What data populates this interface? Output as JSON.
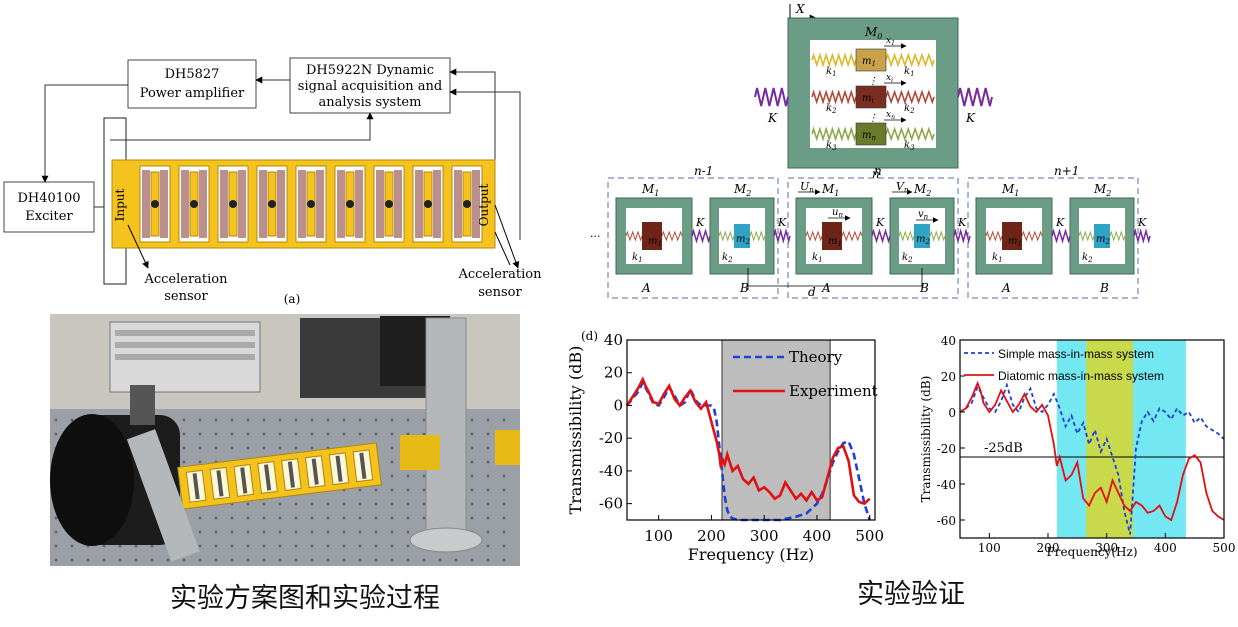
{
  "schematic": {
    "amplifier": [
      "DH5827",
      "Power amplifier"
    ],
    "daq": [
      "DH5922N Dynamic",
      "signal acquisition and",
      "analysis system"
    ],
    "exciter": [
      "DH40100",
      "Exciter"
    ],
    "input": "Input",
    "output": "Output",
    "accel_left": [
      "Acceleration",
      "sensor"
    ],
    "accel_right": [
      "Acceleration",
      "sensor"
    ],
    "panel_tag": "(a)"
  },
  "model": {
    "x_label": "X",
    "M0": "M",
    "M0_sub": "0",
    "K": "K",
    "n_label": "n",
    "rows": [
      {
        "mass": "m",
        "sub": "1",
        "k": "k",
        "k_sub": "1",
        "disp": "x",
        "disp_sub": "1"
      },
      {
        "mass": "m",
        "sub": "i",
        "k": "k",
        "k_sub": "2",
        "disp": "x",
        "disp_sub": "i"
      },
      {
        "mass": "m",
        "sub": "n",
        "k": "k",
        "k_sub": "3",
        "disp": "x",
        "disp_sub": "n"
      }
    ],
    "chain_cells": [
      "n-1",
      "n",
      "n+1"
    ],
    "M1": "M",
    "M2": "M",
    "m1": "m",
    "m2": "m",
    "k1": "k",
    "k2": "k",
    "A": "A",
    "B": "B",
    "d": "d",
    "U": "U",
    "V": "V",
    "u": "u",
    "v": "v",
    "sub_n": "n",
    "sub_1": "1",
    "sub_2": "2",
    "ellipsis": "···"
  },
  "photo": {
    "colors": {
      "yellow": "#f4c21a",
      "bench": "#8b8f94",
      "dark": "#222"
    }
  },
  "chart_data": [
    {
      "type": "line",
      "panel_tag": "(d)",
      "xlabel": "Frequency (Hz)",
      "ylabel": "Transmissibility (dB)",
      "xlim": [
        40,
        510
      ],
      "ylim": [
        -70,
        40
      ],
      "xticks": [
        100,
        200,
        300,
        400,
        500
      ],
      "yticks": [
        40,
        20,
        0,
        -20,
        -40,
        -60
      ],
      "band": [
        220,
        425
      ],
      "series": [
        {
          "name": "Theory",
          "style": "dashed",
          "color": "#1f3fd6",
          "x": [
            40,
            60,
            70,
            80,
            90,
            100,
            110,
            120,
            130,
            140,
            150,
            160,
            170,
            180,
            190,
            200,
            205,
            210,
            215,
            220,
            225,
            230,
            235,
            240,
            250,
            270,
            300,
            330,
            360,
            380,
            400,
            410,
            420,
            430,
            440,
            450,
            460,
            470,
            480,
            490,
            500
          ],
          "y": [
            0,
            8,
            14,
            8,
            1,
            0,
            5,
            11,
            6,
            0,
            2,
            10,
            3,
            0,
            0,
            0,
            -2,
            -10,
            -25,
            -40,
            -55,
            -64,
            -68,
            -69,
            -70,
            -70,
            -70,
            -70,
            -68,
            -66,
            -60,
            -54,
            -45,
            -35,
            -28,
            -23,
            -22,
            -30,
            -45,
            -60,
            -70
          ]
        },
        {
          "name": "Experiment",
          "style": "solid",
          "color": "#e21010",
          "x": [
            40,
            60,
            70,
            75,
            80,
            90,
            100,
            110,
            120,
            130,
            140,
            150,
            160,
            170,
            180,
            190,
            200,
            210,
            215,
            218,
            220,
            225,
            230,
            240,
            250,
            260,
            270,
            280,
            290,
            300,
            310,
            320,
            330,
            340,
            350,
            360,
            370,
            380,
            390,
            400,
            410,
            420,
            430,
            440,
            450,
            460,
            470,
            480,
            490,
            500
          ],
          "y": [
            0,
            10,
            16,
            12,
            9,
            2,
            1,
            7,
            12,
            4,
            0,
            5,
            9,
            2,
            -2,
            2,
            -10,
            -22,
            -30,
            -38,
            -32,
            -36,
            -30,
            -40,
            -37,
            -45,
            -48,
            -44,
            -52,
            -50,
            -53,
            -57,
            -55,
            -47,
            -52,
            -57,
            -54,
            -58,
            -53,
            -58,
            -56,
            -44,
            -32,
            -26,
            -25,
            -34,
            -55,
            -59,
            -60,
            -57
          ]
        }
      ]
    },
    {
      "type": "line",
      "xlabel": "Frequency(Hz)",
      "ylabel": "Transmissibility (dB)",
      "xlim": [
        50,
        500
      ],
      "ylim": [
        -70,
        40
      ],
      "xticks": [
        100,
        200,
        300,
        400,
        500
      ],
      "yticks": [
        40,
        20,
        0,
        -20,
        -40,
        -60
      ],
      "ref_line": {
        "y": -25,
        "label": "-25dB"
      },
      "bands": [
        {
          "range": [
            215,
            435
          ],
          "color": "#73e8f2"
        },
        {
          "range": [
            265,
            345
          ],
          "color": "#c9d94c"
        }
      ],
      "series": [
        {
          "name": "Simple mass-in-mass system",
          "style": "dashed",
          "color": "#1f3fd6",
          "x": [
            50,
            60,
            70,
            80,
            90,
            100,
            110,
            120,
            130,
            140,
            150,
            160,
            170,
            180,
            190,
            200,
            210,
            220,
            230,
            240,
            250,
            260,
            270,
            280,
            290,
            300,
            310,
            320,
            330,
            340,
            350,
            360,
            370,
            380,
            390,
            400,
            410,
            420,
            430,
            440,
            450,
            460,
            470,
            480,
            490,
            500
          ],
          "y": [
            0,
            2,
            5,
            14,
            8,
            2,
            0,
            6,
            15,
            4,
            0,
            8,
            13,
            2,
            0,
            4,
            10,
            2,
            -8,
            -2,
            -12,
            -6,
            -18,
            -10,
            -22,
            -15,
            -25,
            -35,
            -55,
            -68,
            -20,
            -5,
            0,
            -5,
            2,
            0,
            -4,
            2,
            -2,
            0,
            -6,
            -3,
            -8,
            -10,
            -12,
            -15
          ]
        },
        {
          "name": "Diatomic mass-in-mass system",
          "style": "solid",
          "color": "#e21010",
          "x": [
            50,
            60,
            70,
            80,
            85,
            90,
            100,
            110,
            120,
            130,
            140,
            150,
            160,
            170,
            180,
            190,
            200,
            210,
            215,
            220,
            230,
            240,
            250,
            260,
            270,
            280,
            290,
            300,
            310,
            320,
            330,
            340,
            350,
            360,
            370,
            380,
            390,
            400,
            410,
            420,
            430,
            440,
            450,
            460,
            470,
            480,
            490,
            500
          ],
          "y": [
            0,
            2,
            8,
            16,
            12,
            5,
            0,
            4,
            12,
            6,
            0,
            4,
            10,
            3,
            0,
            4,
            -2,
            -18,
            -30,
            -25,
            -38,
            -35,
            -28,
            -48,
            -52,
            -45,
            -42,
            -50,
            -38,
            -45,
            -52,
            -55,
            -50,
            -52,
            -56,
            -55,
            -52,
            -58,
            -60,
            -50,
            -35,
            -26,
            -24,
            -28,
            -45,
            -55,
            -58,
            -60
          ]
        }
      ]
    }
  ],
  "captions": {
    "left": "实验方案图和实验过程",
    "right": "实验验证"
  }
}
